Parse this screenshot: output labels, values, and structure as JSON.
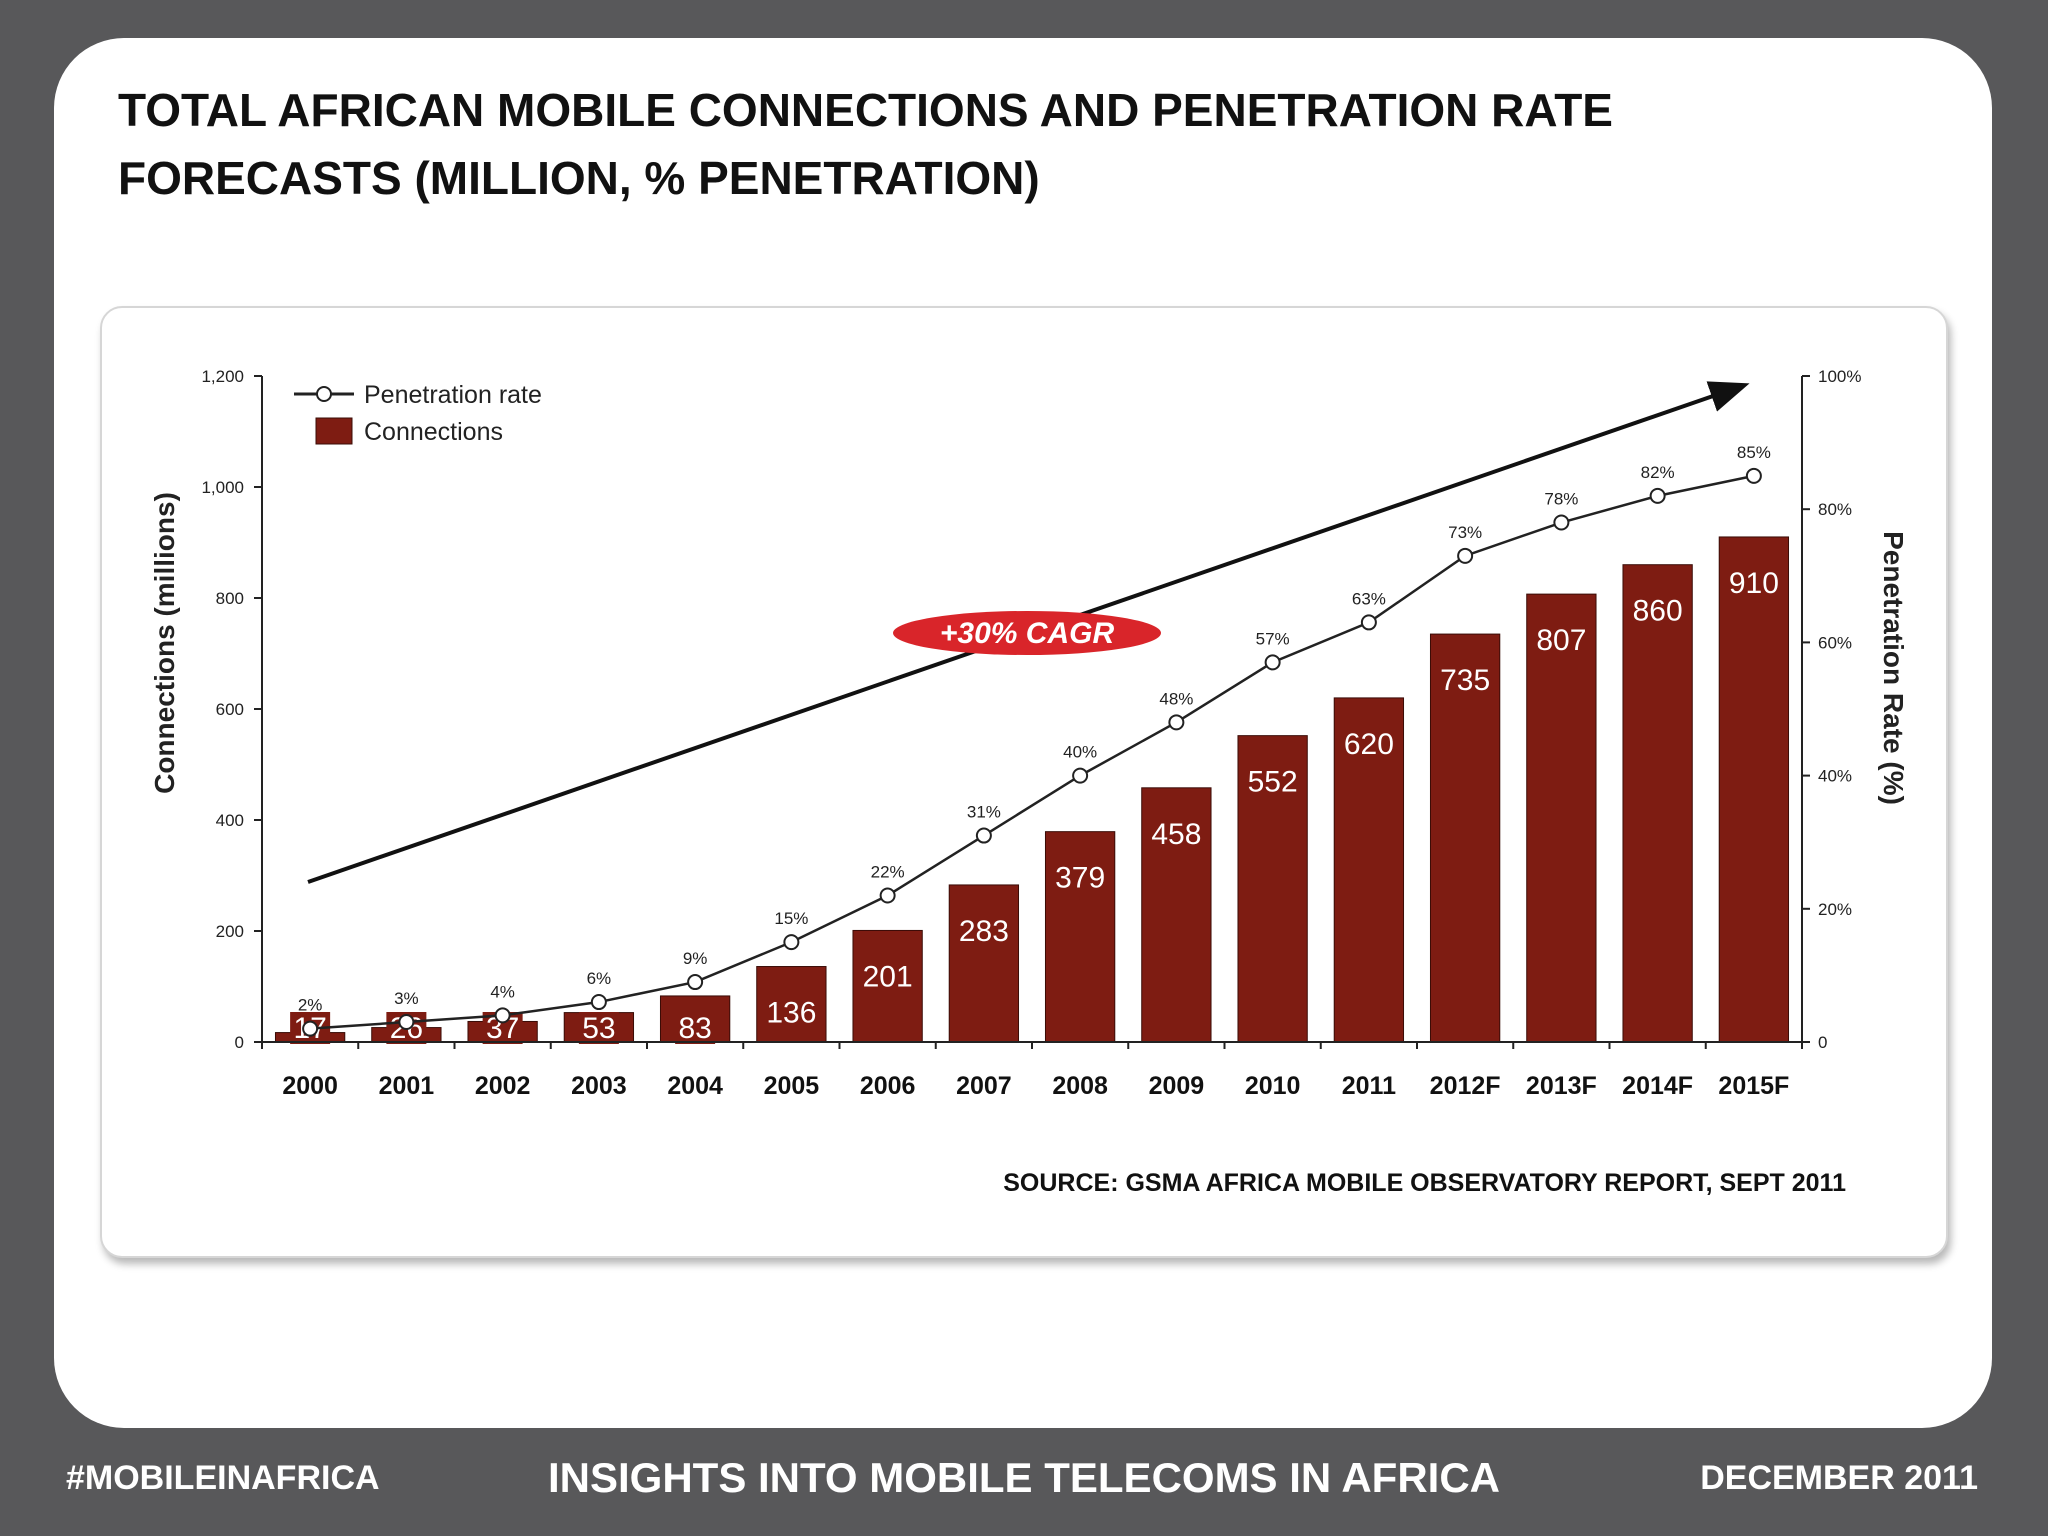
{
  "slide": {
    "title_line1": "TOTAL AFRICAN MOBILE CONNECTIONS AND PENETRATION RATE",
    "title_line2": "FORECASTS (MILLION, % PENETRATION)",
    "source": "SOURCE: GSMA AFRICA MOBILE OBSERVATORY REPORT, SEPT 2011"
  },
  "footer": {
    "left": "#MOBILEINAFRICA",
    "center": "INSIGHTS INTO MOBILE TELECOMS IN AFRICA",
    "right": "DECEMBER 2011"
  },
  "chart_data": {
    "type": "bar",
    "title": "",
    "categories": [
      "2000",
      "2001",
      "2002",
      "2003",
      "2004",
      "2005",
      "2006",
      "2007",
      "2008",
      "2009",
      "2010",
      "2011",
      "2012F",
      "2013F",
      "2014F",
      "2015F"
    ],
    "series": [
      {
        "name": "Connections",
        "axis": "left",
        "type": "bar",
        "values": [
          17,
          26,
          37,
          53,
          83,
          136,
          201,
          283,
          379,
          458,
          552,
          620,
          735,
          807,
          860,
          910
        ],
        "labels": [
          "17",
          "26",
          "37",
          "53",
          "83",
          "136",
          "201",
          "283",
          "379",
          "458",
          "552",
          "620",
          "735",
          "807",
          "860",
          "910"
        ],
        "color": "#7e1c12"
      },
      {
        "name": "Penetration rate",
        "axis": "right",
        "type": "line",
        "values": [
          2,
          3,
          4,
          6,
          9,
          15,
          22,
          31,
          40,
          48,
          57,
          63,
          73,
          78,
          82,
          85
        ],
        "labels": [
          "2%",
          "3%",
          "4%",
          "6%",
          "9%",
          "15%",
          "22%",
          "31%",
          "40%",
          "48%",
          "57%",
          "63%",
          "73%",
          "78%",
          "82%",
          "85%"
        ],
        "color": "#222222"
      }
    ],
    "ylabel": "Connections (millions)",
    "ylim": [
      0,
      1200
    ],
    "yticks": [
      "0",
      "200",
      "400",
      "600",
      "800",
      "1,000",
      "1,200"
    ],
    "ylabel_right": "Penetration Rate (%)",
    "ylim_right": [
      0,
      100
    ],
    "yticks_right": [
      "0",
      "20%",
      "40%",
      "60%",
      "80%",
      "100%"
    ],
    "annotation": "+30% CAGR",
    "annotation_color": "#d9252a",
    "legend_position": "top-left",
    "grid": false
  }
}
